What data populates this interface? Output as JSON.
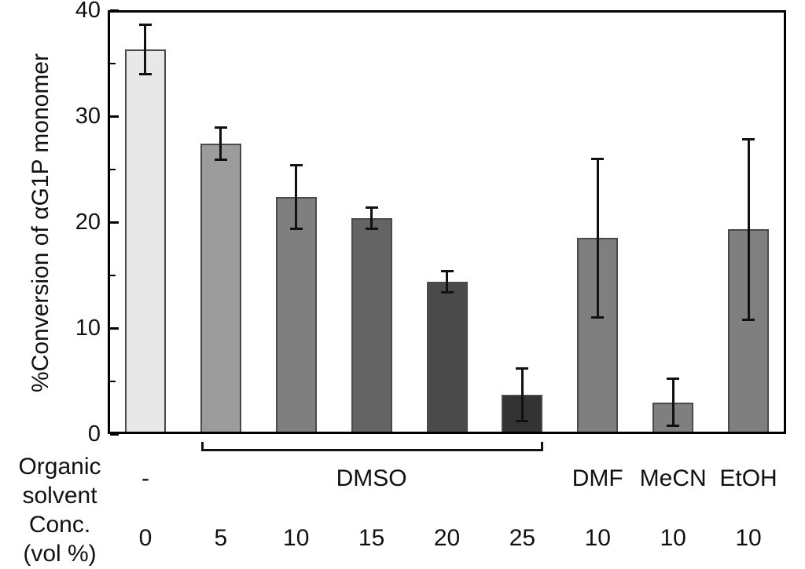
{
  "chart_data": {
    "type": "bar",
    "title": "",
    "ylabel": "%Conversion of αG1P monomer",
    "xlabel": "",
    "ylim": [
      0,
      40
    ],
    "yticks": [
      0,
      10,
      20,
      30,
      40
    ],
    "yticks_minor": [
      5,
      15,
      25,
      35
    ],
    "grid": false,
    "frame": "full-box",
    "legend": "none",
    "bars": [
      {
        "solvent": "-",
        "conc": "0",
        "value": 36.3,
        "error": 2.3,
        "color": "#e8e8e8"
      },
      {
        "solvent": "DMSO",
        "conc": "5",
        "value": 27.4,
        "error": 1.5,
        "color": "#9c9c9c"
      },
      {
        "solvent": "DMSO",
        "conc": "10",
        "value": 22.4,
        "error": 3.0,
        "color": "#7f7f7f"
      },
      {
        "solvent": "DMSO",
        "conc": "15",
        "value": 20.4,
        "error": 1.0,
        "color": "#646464"
      },
      {
        "solvent": "DMSO",
        "conc": "20",
        "value": 14.4,
        "error": 1.0,
        "color": "#4a4a4a"
      },
      {
        "solvent": "DMSO",
        "conc": "25",
        "value": 3.7,
        "error": 2.5,
        "color": "#333333"
      },
      {
        "solvent": "DMF",
        "conc": "10",
        "value": 18.5,
        "error": 7.5,
        "color": "#7f7f7f"
      },
      {
        "solvent": "MeCN",
        "conc": "10",
        "value": 3.0,
        "error": 2.2,
        "color": "#7f7f7f"
      },
      {
        "solvent": "EtOH",
        "conc": "10",
        "value": 19.3,
        "error": 8.5,
        "color": "#7f7f7f"
      }
    ],
    "x_axis_rows": {
      "row1_header": [
        "Organic",
        "solvent"
      ],
      "row2_header": [
        "Conc.",
        "(vol %)"
      ],
      "solvent_labels": [
        {
          "text": "-",
          "bars": [
            0,
            0
          ],
          "bracket": false
        },
        {
          "text": "DMSO",
          "bars": [
            1,
            5
          ],
          "bracket": true
        },
        {
          "text": "DMF",
          "bars": [
            6,
            6
          ],
          "bracket": false
        },
        {
          "text": "MeCN",
          "bars": [
            7,
            7
          ],
          "bracket": false
        },
        {
          "text": "EtOH",
          "bars": [
            8,
            8
          ],
          "bracket": false
        }
      ],
      "conc_labels": [
        "0",
        "5",
        "10",
        "15",
        "20",
        "25",
        "10",
        "10",
        "10"
      ]
    },
    "colors": {
      "axis": "#000000",
      "text": "#111111",
      "error_bar": "#111111",
      "bar_edge": "#4a4a4a",
      "background": "#ffffff"
    }
  }
}
